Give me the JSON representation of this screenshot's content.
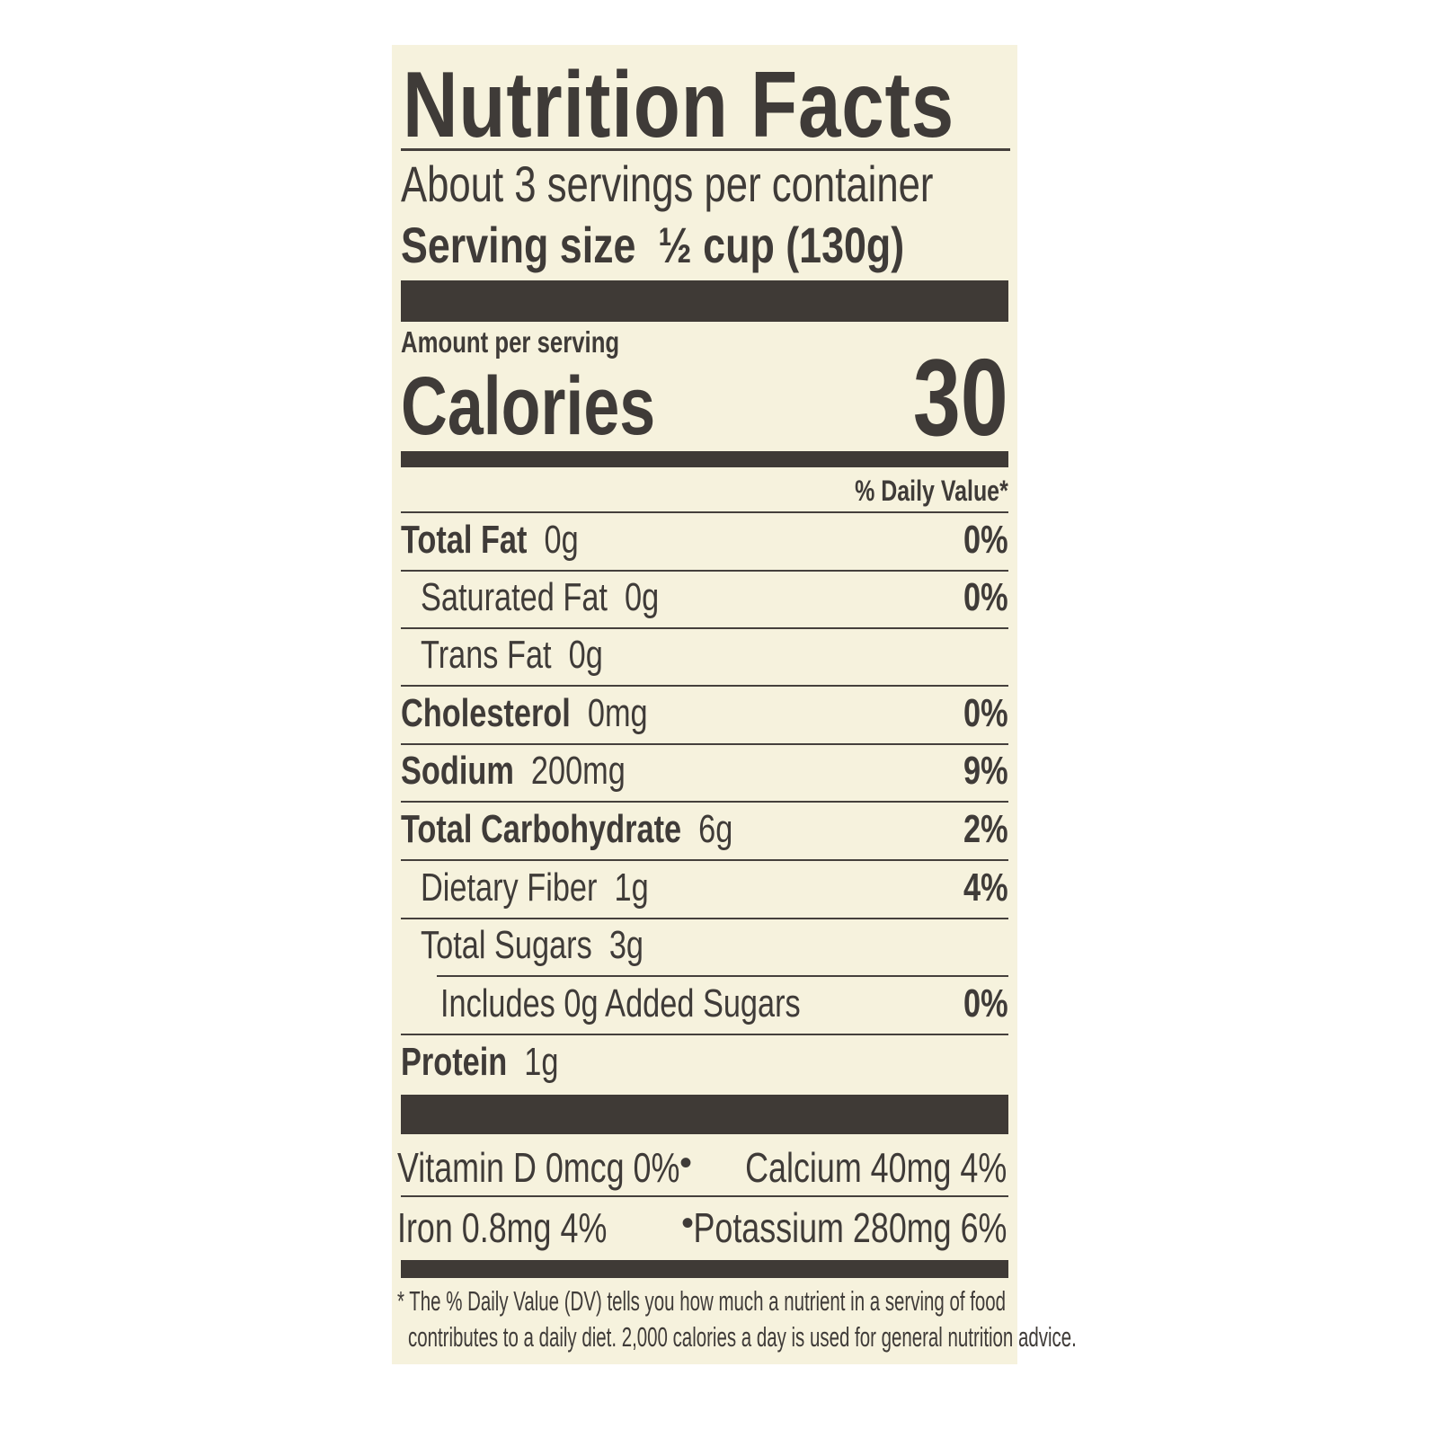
{
  "title": "Nutrition Facts",
  "servings_per_container": "About 3 servings per container",
  "serving_size": {
    "label": "Serving size",
    "value": "½ cup (130g)"
  },
  "amount_per_serving": "Amount per serving",
  "calories": {
    "label": "Calories",
    "value": "30"
  },
  "daily_value_header": "% Daily Value*",
  "nutrients": [
    {
      "name": "Total Fat",
      "amount": "0g",
      "dv": "0%",
      "bold": true
    },
    {
      "name": "Saturated Fat",
      "amount": "0g",
      "dv": "0%",
      "bold": false
    },
    {
      "name": "Trans Fat",
      "amount": "0g",
      "dv": "",
      "bold": false
    },
    {
      "name": "Cholesterol",
      "amount": "0mg",
      "dv": "0%",
      "bold": true
    },
    {
      "name": "Sodium",
      "amount": "200mg",
      "dv": "9%",
      "bold": true
    },
    {
      "name": "Total Carbohydrate",
      "amount": "6g",
      "dv": "2%",
      "bold": true
    },
    {
      "name": "Dietary Fiber",
      "amount": "1g",
      "dv": "4%",
      "bold": false
    },
    {
      "name": "Total Sugars",
      "amount": "3g",
      "dv": "",
      "bold": false
    },
    {
      "name": "Includes 0g Added Sugars",
      "amount": "",
      "dv": "0%",
      "bold": false
    },
    {
      "name": "Protein",
      "amount": "1g",
      "dv": "",
      "bold": true
    }
  ],
  "micronutrients": [
    {
      "left": "Vitamin D  0mcg  0%",
      "separator": "•",
      "right": "Calcium  40mg  4%"
    },
    {
      "left": "Iron  0.8mg  4%",
      "separator": "•",
      "right": "Potassium  280mg  6%"
    }
  ],
  "footnote": [
    "* The % Daily Value (DV) tells you how much a nutrient in a serving of food",
    "contributes to a daily diet. 2,000 calories a day is used for general nutrition advice."
  ],
  "colors": {
    "background": "#f6f2dd",
    "ink": "#3f3b38"
  }
}
